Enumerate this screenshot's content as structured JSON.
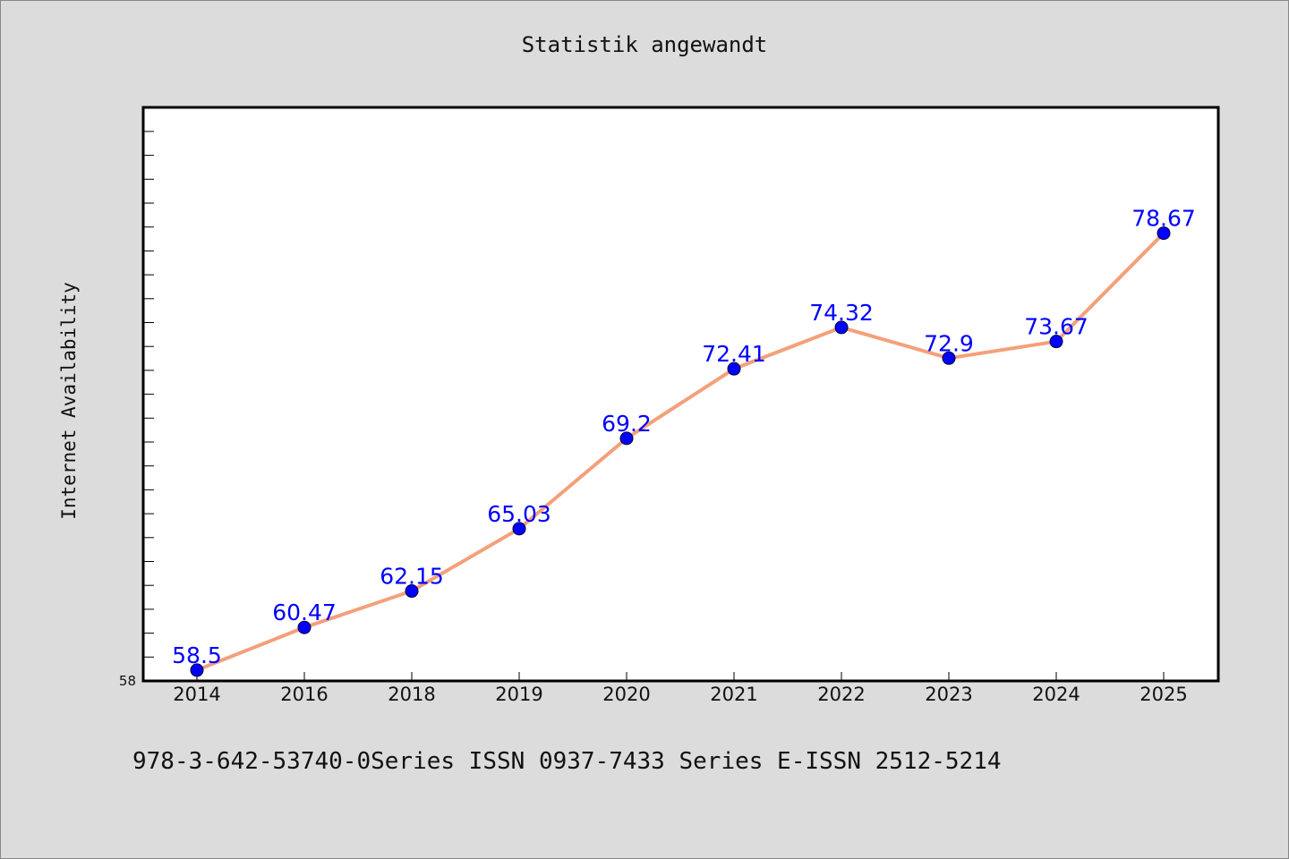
{
  "page": {
    "title": "Statistik angewandt",
    "footer": "978-3-642-53740-0Series ISSN 0937-7433 Series E-ISSN 2512-5214"
  },
  "chart_data": {
    "type": "line",
    "title": "Statistik angewandt",
    "xlabel": "",
    "ylabel": "Internet Availability",
    "categories": [
      "2014",
      "2016",
      "2018",
      "2019",
      "2020",
      "2021",
      "2022",
      "2023",
      "2024",
      "2025"
    ],
    "series": [
      {
        "values": [
          58.5,
          60.47,
          62.15,
          65.03,
          69.2,
          72.41,
          74.32,
          72.9,
          73.67,
          78.67
        ],
        "line_color": "#f4a07a",
        "marker_color": "#0000ff"
      }
    ],
    "data_labels": [
      "58.5",
      "60.47",
      "62.15",
      "65.03",
      "69.2",
      "72.41",
      "74.32",
      "72.9",
      "73.67",
      "78.67"
    ],
    "ylim": [
      58,
      82
    ],
    "y_tick_labels": [
      "58"
    ],
    "grid": false,
    "legend": "none"
  }
}
